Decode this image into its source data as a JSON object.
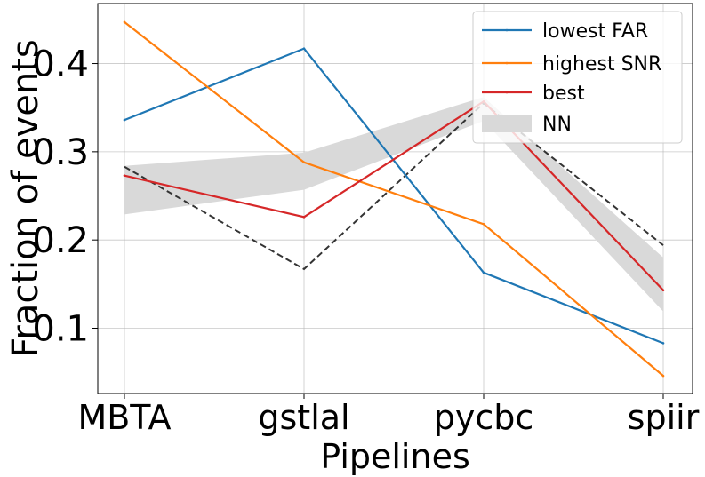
{
  "chart_data": {
    "type": "line",
    "title": "",
    "xlabel": "Pipelines",
    "ylabel": "Fraction of events",
    "categories": [
      "MBTA",
      "gstlal",
      "pycbc",
      "spiir"
    ],
    "yticks": [
      "0.1",
      "0.2",
      "0.3",
      "0.4"
    ],
    "ylim": [
      0.026,
      0.468
    ],
    "grid": true,
    "legend_position": "top-right",
    "series": [
      {
        "name": "lowest FAR",
        "color": "#1f77b4",
        "values": [
          0.336,
          0.417,
          0.163,
          0.083
        ]
      },
      {
        "name": "highest SNR",
        "color": "#ff7f0e",
        "values": [
          0.447,
          0.288,
          0.218,
          0.046
        ]
      },
      {
        "name": "best",
        "color": "#d62728",
        "values": [
          0.273,
          0.226,
          0.357,
          0.143
        ]
      }
    ],
    "band": {
      "name": "NN",
      "color": "#d9d9d9",
      "lower": [
        0.229,
        0.257,
        0.335,
        0.119
      ],
      "upper": [
        0.284,
        0.299,
        0.362,
        0.18
      ]
    },
    "dashed_line": {
      "color": "#333333",
      "values": [
        0.283,
        0.167,
        0.355,
        0.194
      ]
    }
  }
}
